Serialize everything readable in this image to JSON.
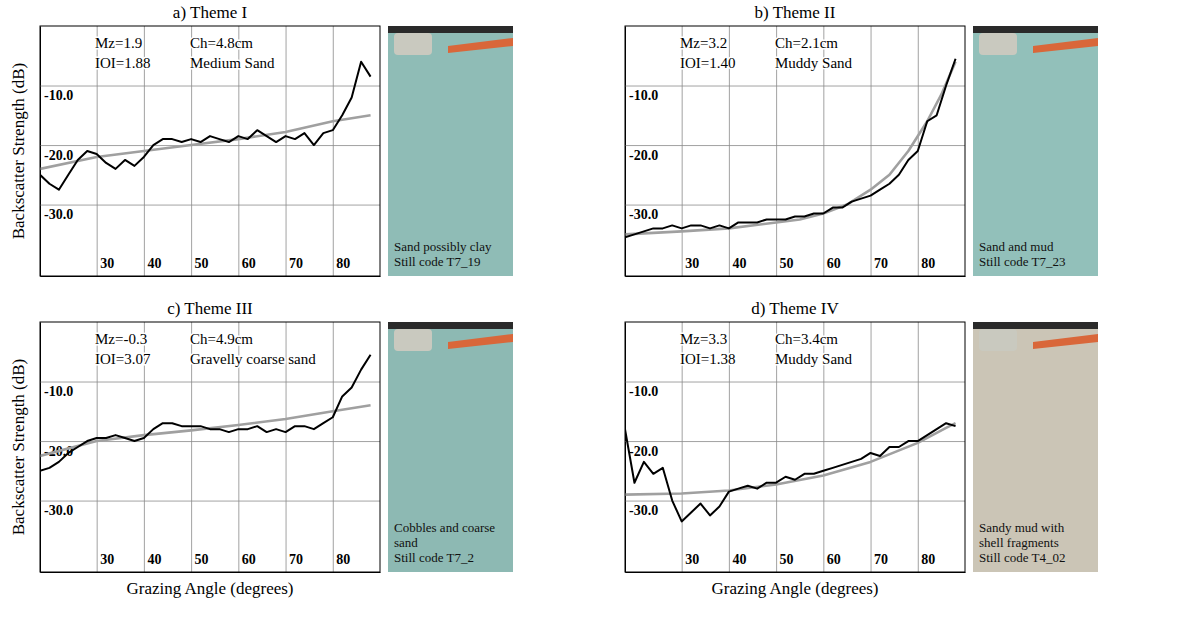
{
  "chart_data": [
    {
      "type": "line",
      "title": "a) Theme I",
      "y_label": "Backscatter Strength (dB)",
      "annotations": [
        "Mz=1.9",
        "Ch=4.8cm",
        "IOI=1.88",
        "Medium Sand"
      ],
      "photo_caption": [
        "Sand possibly clay",
        "Still code T7_19"
      ],
      "xlim": [
        18,
        90
      ],
      "xticks": [
        30,
        40,
        50,
        60,
        70,
        80
      ],
      "ylim": [
        -42,
        0
      ],
      "yticks": [
        {
          "value": -10,
          "label": "-10.0"
        },
        {
          "value": -20,
          "label": "-20.0"
        },
        {
          "value": -30,
          "label": "-30.0"
        }
      ],
      "grid": true,
      "series": [
        {
          "color": "#000000",
          "x": [
            18,
            20,
            22,
            24,
            26,
            28,
            30,
            32,
            34,
            36,
            38,
            40,
            42,
            44,
            46,
            48,
            50,
            52,
            54,
            56,
            58,
            60,
            62,
            64,
            66,
            68,
            70,
            72,
            74,
            76,
            78,
            80,
            82,
            84,
            86,
            88
          ],
          "values": [
            -25,
            -26.5,
            -27.5,
            -25,
            -22.5,
            -21,
            -21.5,
            -23,
            -24,
            -22.5,
            -23.5,
            -22,
            -20,
            -19,
            -19,
            -19.5,
            -19,
            -19.5,
            -18.5,
            -19,
            -19.5,
            -18.5,
            -19,
            -17.5,
            -18.5,
            -19.5,
            -18.5,
            -19,
            -18,
            -20,
            -18,
            -17.5,
            -15,
            -12,
            -6,
            -8.5
          ]
        },
        {
          "color": "#a0a0a0",
          "x": [
            18,
            30,
            40,
            50,
            60,
            70,
            80,
            88
          ],
          "values": [
            -24,
            -22,
            -21,
            -20,
            -19,
            -17.8,
            -16,
            -15
          ]
        }
      ]
    },
    {
      "type": "line",
      "title": "b) Theme II",
      "annotations": [
        "Mz=3.2",
        "Ch=2.1cm",
        "IOI=1.40",
        "Muddy Sand"
      ],
      "photo_caption": [
        "Sand and mud",
        "Still code T7_23"
      ],
      "xlim": [
        18,
        90
      ],
      "xticks": [
        30,
        40,
        50,
        60,
        70,
        80
      ],
      "ylim": [
        -42,
        0
      ],
      "yticks": [
        {
          "value": -10,
          "label": "-10.0"
        },
        {
          "value": -20,
          "label": "-20.0"
        },
        {
          "value": -30,
          "label": "-30.0"
        }
      ],
      "grid": true,
      "series": [
        {
          "color": "#000000",
          "x": [
            18,
            20,
            22,
            24,
            26,
            28,
            30,
            32,
            34,
            36,
            38,
            40,
            42,
            44,
            46,
            48,
            50,
            52,
            54,
            56,
            58,
            60,
            62,
            64,
            66,
            68,
            70,
            72,
            74,
            76,
            78,
            80,
            82,
            84,
            86,
            88
          ],
          "values": [
            -35.5,
            -35,
            -34.5,
            -34,
            -34,
            -33.5,
            -34,
            -33.5,
            -33.5,
            -34,
            -33.5,
            -34,
            -33,
            -33,
            -33,
            -32.5,
            -32.5,
            -32.5,
            -32,
            -32,
            -31.5,
            -31.5,
            -30.5,
            -30.5,
            -29.5,
            -29,
            -28.5,
            -27.5,
            -26.5,
            -25,
            -22.5,
            -21,
            -16,
            -15,
            -10,
            -5.5
          ]
        },
        {
          "color": "#a0a0a0",
          "x": [
            18,
            30,
            40,
            50,
            55,
            60,
            65,
            70,
            74,
            78,
            82,
            85,
            88
          ],
          "values": [
            -35,
            -34.5,
            -34,
            -33,
            -32.5,
            -31.5,
            -30,
            -27.5,
            -25,
            -21,
            -16,
            -11.5,
            -6
          ]
        }
      ]
    },
    {
      "type": "line",
      "title": "c) Theme III",
      "y_label": "Backscatter Strength (dB)",
      "x_label": "Grazing Angle (degrees)",
      "annotations": [
        "Mz=-0.3",
        "Ch=4.9cm",
        "IOI=3.07",
        "Gravelly coarse sand"
      ],
      "photo_caption": [
        "Cobbles and coarse",
        "sand",
        "Still code T7_2"
      ],
      "xlim": [
        18,
        90
      ],
      "xticks": [
        30,
        40,
        50,
        60,
        70,
        80
      ],
      "ylim": [
        -42,
        0
      ],
      "yticks": [
        {
          "value": -10,
          "label": "-10.0"
        },
        {
          "value": -20,
          "label": "-20.0"
        },
        {
          "value": -30,
          "label": "-30.0"
        }
      ],
      "grid": true,
      "series": [
        {
          "color": "#000000",
          "x": [
            18,
            20,
            22,
            24,
            26,
            28,
            30,
            32,
            34,
            36,
            38,
            40,
            42,
            44,
            46,
            48,
            50,
            52,
            54,
            56,
            58,
            60,
            62,
            64,
            66,
            68,
            70,
            72,
            74,
            76,
            78,
            80,
            82,
            84,
            86,
            88
          ],
          "values": [
            -25,
            -24.5,
            -23.5,
            -22,
            -21,
            -20,
            -19.5,
            -19.5,
            -19,
            -19.5,
            -20,
            -19.5,
            -18,
            -17,
            -17,
            -17.5,
            -17.5,
            -17.5,
            -18,
            -18,
            -18.5,
            -18,
            -18,
            -17.5,
            -18.5,
            -18,
            -18.5,
            -17.5,
            -17.5,
            -18,
            -17,
            -16,
            -12.5,
            -11,
            -8,
            -5.5
          ]
        },
        {
          "color": "#a0a0a0",
          "x": [
            18,
            30,
            40,
            50,
            60,
            70,
            80,
            88
          ],
          "values": [
            -22.5,
            -20,
            -19,
            -18.2,
            -17.3,
            -16.3,
            -15,
            -14
          ]
        }
      ]
    },
    {
      "type": "line",
      "title": "d) Theme IV",
      "x_label": "Grazing Angle (degrees)",
      "annotations": [
        "Mz=3.3",
        "Ch=3.4cm",
        "IOI=1.38",
        "Muddy Sand"
      ],
      "photo_caption": [
        "Sandy mud with",
        "shell fragments",
        "Still code T4_02"
      ],
      "xlim": [
        18,
        90
      ],
      "xticks": [
        30,
        40,
        50,
        60,
        70,
        80
      ],
      "ylim": [
        -42,
        0
      ],
      "yticks": [
        {
          "value": -10,
          "label": "-10.0"
        },
        {
          "value": -20,
          "label": "-20.0"
        },
        {
          "value": -30,
          "label": "-30.0"
        }
      ],
      "grid": true,
      "series": [
        {
          "color": "#000000",
          "x": [
            18,
            20,
            22,
            24,
            26,
            28,
            30,
            32,
            34,
            36,
            38,
            40,
            42,
            44,
            46,
            48,
            50,
            52,
            54,
            56,
            58,
            60,
            62,
            64,
            66,
            68,
            70,
            72,
            74,
            76,
            78,
            80,
            82,
            84,
            86,
            88
          ],
          "values": [
            -18,
            -27,
            -23.5,
            -25.5,
            -24.5,
            -30,
            -33.5,
            -32,
            -30.5,
            -32.5,
            -31,
            -28.5,
            -28,
            -27.5,
            -28,
            -27,
            -27,
            -26,
            -26.5,
            -25.5,
            -25.5,
            -25,
            -24.5,
            -24,
            -23.5,
            -23,
            -22,
            -22.5,
            -21,
            -21,
            -20,
            -20,
            -19,
            -18,
            -17,
            -17.5
          ]
        },
        {
          "color": "#a0a0a0",
          "x": [
            18,
            30,
            40,
            50,
            60,
            70,
            80,
            86,
            88
          ],
          "values": [
            -29,
            -28.8,
            -28.3,
            -27.3,
            -25.8,
            -23.5,
            -20.3,
            -17.8,
            -17
          ]
        }
      ]
    }
  ]
}
